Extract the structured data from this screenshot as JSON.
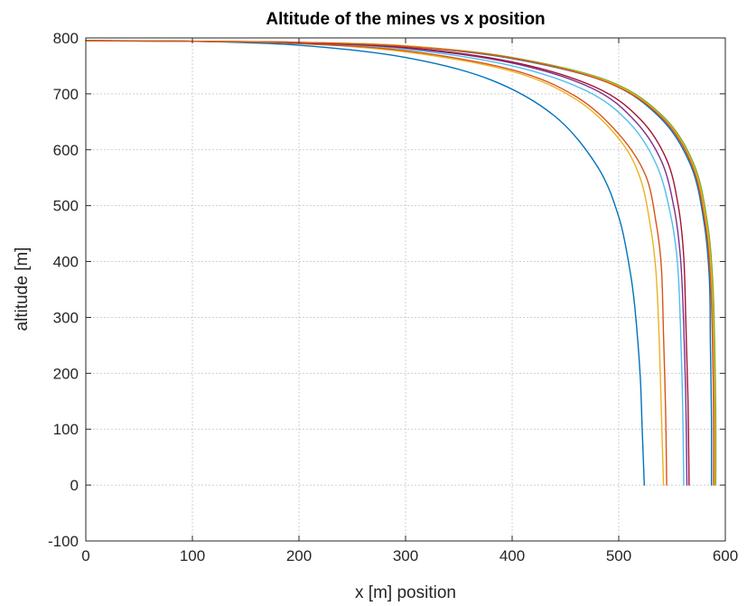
{
  "chart_data": {
    "type": "line",
    "title": "Altitude of the mines vs x position",
    "xlabel": "x [m] position",
    "ylabel": "altitude [m]",
    "xlim": [
      0,
      600
    ],
    "ylim": [
      -100,
      800
    ],
    "xticks": [
      0,
      100,
      200,
      300,
      400,
      500,
      600
    ],
    "yticks": [
      -100,
      0,
      100,
      200,
      300,
      400,
      500,
      600,
      700,
      800
    ],
    "grid": true,
    "series": [
      {
        "color": "#0072BD",
        "x": [
          0,
          100,
          200,
          300,
          380,
          440,
          480,
          500,
          510,
          515,
          520,
          522,
          524
        ],
        "y": [
          795,
          794,
          787,
          765,
          725,
          660,
          570,
          480,
          390,
          320,
          200,
          100,
          0
        ]
      },
      {
        "color": "#EDB120",
        "x": [
          0,
          100,
          200,
          300,
          400,
          460,
          500,
          520,
          530,
          535,
          538,
          540,
          542
        ],
        "y": [
          795,
          794,
          790,
          775,
          740,
          690,
          620,
          550,
          460,
          380,
          260,
          130,
          0
        ]
      },
      {
        "color": "#D95319",
        "x": [
          0,
          100,
          200,
          300,
          400,
          460,
          500,
          525,
          535,
          540,
          542,
          544,
          545
        ],
        "y": [
          795,
          794,
          790,
          777,
          743,
          695,
          628,
          555,
          470,
          390,
          270,
          130,
          0
        ]
      },
      {
        "color": "#4DBEEE",
        "x": [
          0,
          100,
          200,
          300,
          400,
          470,
          510,
          535,
          548,
          555,
          558,
          560,
          561
        ],
        "y": [
          795,
          794,
          791,
          780,
          750,
          705,
          648,
          575,
          490,
          400,
          280,
          140,
          0
        ]
      },
      {
        "color": "#7E2F8E",
        "x": [
          0,
          100,
          200,
          300,
          400,
          475,
          515,
          540,
          552,
          558,
          561,
          563,
          564
        ],
        "y": [
          795,
          794,
          791,
          782,
          755,
          710,
          652,
          580,
          495,
          405,
          285,
          145,
          0
        ]
      },
      {
        "color": "#A2142F",
        "x": [
          0,
          100,
          200,
          300,
          400,
          478,
          520,
          545,
          556,
          561,
          563,
          565,
          566
        ],
        "y": [
          795,
          794,
          791,
          783,
          757,
          712,
          655,
          582,
          498,
          408,
          288,
          148,
          0
        ]
      },
      {
        "color": "#0072BD",
        "x": [
          0,
          100,
          200,
          300,
          400,
          490,
          540,
          568,
          580,
          585,
          586,
          587,
          587
        ],
        "y": [
          795,
          794,
          792,
          785,
          763,
          720,
          655,
          570,
          470,
          370,
          250,
          120,
          0
        ]
      },
      {
        "color": "#77AC30",
        "x": [
          0,
          100,
          200,
          300,
          400,
          492,
          543,
          571,
          583,
          588,
          590,
          591,
          591
        ],
        "y": [
          795,
          794,
          792,
          786,
          765,
          722,
          657,
          572,
          472,
          372,
          252,
          122,
          0
        ]
      },
      {
        "color": "#EDB120",
        "x": [
          0,
          100,
          200,
          300,
          400,
          491,
          542,
          570,
          582,
          587,
          589,
          590,
          590
        ],
        "y": [
          795,
          794,
          792,
          786,
          764,
          721,
          656,
          571,
          471,
          371,
          251,
          121,
          0
        ]
      },
      {
        "color": "#D95319",
        "x": [
          0,
          100,
          200,
          300,
          400,
          490,
          541,
          569,
          581,
          586,
          588,
          589,
          589
        ],
        "y": [
          795,
          794,
          792,
          785,
          764,
          720,
          656,
          571,
          470,
          370,
          250,
          120,
          0
        ]
      }
    ]
  }
}
